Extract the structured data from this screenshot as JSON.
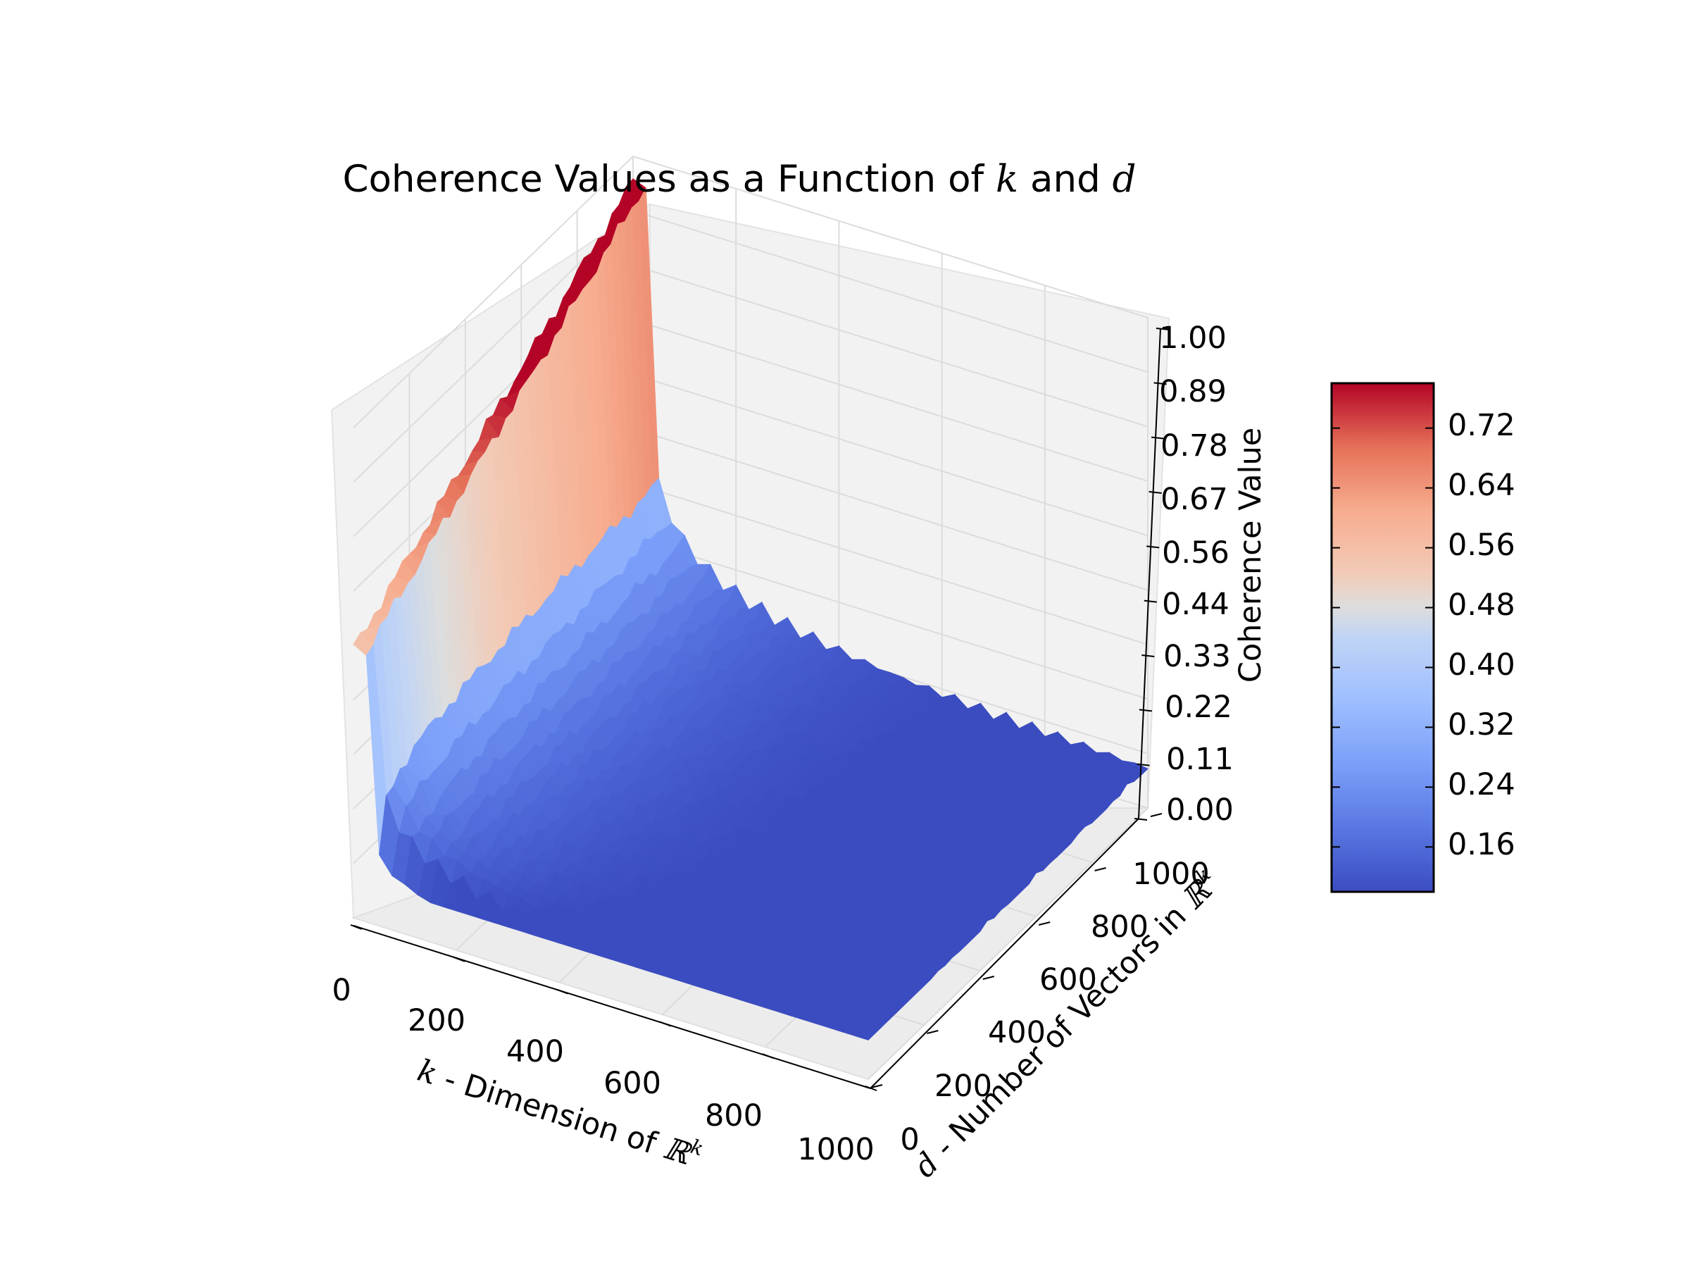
{
  "chart_data": {
    "type": "surface3d",
    "title": {
      "prefix": "Coherence Values as a Function of ",
      "var1": "k",
      "middle": " and ",
      "var2": "d"
    },
    "x_axis": {
      "label_var": "k",
      "label_text": " - Dimension of ",
      "label_space": "ℝ",
      "label_sup": "k",
      "range": [
        0,
        1000
      ],
      "ticks": [
        "0",
        "200",
        "400",
        "600",
        "800",
        "1000"
      ]
    },
    "y_axis": {
      "label_var": "d",
      "label_text": " - Number of Vectors in ",
      "label_space": "ℝ",
      "label_sup": "k",
      "range": [
        0,
        1000
      ],
      "ticks": [
        "0",
        "200",
        "400",
        "600",
        "800",
        "1000"
      ]
    },
    "z_axis": {
      "label": "Coherence Value",
      "range": [
        0,
        1
      ],
      "ticks": [
        "0.00",
        "0.11",
        "0.22",
        "0.33",
        "0.44",
        "0.56",
        "0.67",
        "0.78",
        "0.89",
        "1.00"
      ]
    },
    "colorbar": {
      "colormap": "coolwarm",
      "range": [
        0.1,
        0.78
      ],
      "ticks": [
        "0.16",
        "0.24",
        "0.32",
        "0.40",
        "0.48",
        "0.56",
        "0.64",
        "0.72"
      ]
    },
    "surface_samples": [
      {
        "k": 0,
        "d": 1000,
        "coherence": 0.95
      },
      {
        "k": 0,
        "d": 0,
        "coherence": 0.58
      },
      {
        "k": 200,
        "d": 1000,
        "coherence": 0.45
      },
      {
        "k": 1000,
        "d": 1000,
        "coherence": 0.16
      },
      {
        "k": 1000,
        "d": 0,
        "coherence": 0.1
      }
    ],
    "grid": true,
    "colors": {
      "pane": "#f2f2f2",
      "grid": "#e0e0e0",
      "low": "#3b4cc0",
      "mid": "#dddddd",
      "high": "#b40426"
    }
  }
}
